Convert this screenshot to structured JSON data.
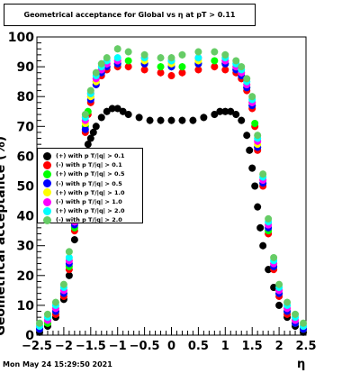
{
  "title": "Geometrical acceptance for Global vs  η at pT > 0.11",
  "footer": "Mon May 24 15:29:50 2021",
  "chart_data": {
    "type": "scatter",
    "xlabel": "η",
    "ylabel": "Geometrical acceptance (%)",
    "xlim": [
      -2.5,
      2.5
    ],
    "ylim": [
      0,
      100
    ],
    "x_ticks": [
      "−2.5",
      "−2",
      "−1.5",
      "−1",
      "−0.5",
      "0",
      "0.5",
      "1",
      "1.5",
      "2",
      "2.5"
    ],
    "y_ticks": [
      "0",
      "10",
      "20",
      "30",
      "40",
      "50",
      "60",
      "70",
      "80",
      "90",
      "100"
    ],
    "legend_position": "left-middle",
    "series": [
      {
        "name": "(+) with p T/|q| > 0.1",
        "color": "#000000",
        "x": [
          -2.45,
          -2.3,
          -2.15,
          -2.0,
          -1.9,
          -1.8,
          -1.7,
          -1.65,
          -1.6,
          -1.55,
          -1.5,
          -1.45,
          -1.4,
          -1.3,
          -1.2,
          -1.1,
          -1.0,
          -0.9,
          -0.8,
          -0.6,
          -0.4,
          -0.2,
          0.0,
          0.2,
          0.4,
          0.6,
          0.8,
          0.9,
          1.0,
          1.1,
          1.2,
          1.3,
          1.4,
          1.45,
          1.5,
          1.55,
          1.6,
          1.65,
          1.7,
          1.8,
          1.9,
          2.0,
          2.15,
          2.3,
          2.45
        ],
        "y": [
          1,
          3,
          6,
          12,
          20,
          32,
          45,
          55,
          60,
          64,
          66,
          68,
          70,
          73,
          75,
          76,
          76,
          75,
          74,
          73,
          72,
          72,
          72,
          72,
          72,
          73,
          74,
          75,
          75,
          75,
          74,
          72,
          67,
          62,
          56,
          50,
          43,
          36,
          30,
          22,
          16,
          10,
          6,
          3,
          1
        ]
      },
      {
        "name": "(-) with p T/|q| > 0.1",
        "color": "#ff0000",
        "x": [
          -2.45,
          -2.3,
          -2.15,
          -2.0,
          -1.9,
          -1.8,
          -1.7,
          -1.6,
          -1.55,
          -1.5,
          -1.4,
          -1.3,
          -1.2,
          -1.0,
          -0.8,
          -0.5,
          -0.2,
          0.0,
          0.2,
          0.5,
          0.8,
          1.0,
          1.2,
          1.3,
          1.4,
          1.5,
          1.55,
          1.6,
          1.7,
          1.8,
          1.9,
          2.0,
          2.15,
          2.3,
          2.45
        ],
        "y": [
          2,
          4,
          7,
          13,
          22,
          35,
          52,
          68,
          74,
          78,
          84,
          87,
          89,
          90,
          90,
          89,
          88,
          87,
          88,
          89,
          90,
          89,
          88,
          86,
          82,
          76,
          70,
          62,
          50,
          34,
          22,
          13,
          7,
          4,
          2
        ]
      },
      {
        "name": "(+) with p T/|q| > 0.5",
        "color": "#00ff00",
        "x": [
          -2.45,
          -2.3,
          -2.15,
          -2.0,
          -1.9,
          -1.8,
          -1.7,
          -1.6,
          -1.55,
          -1.5,
          -1.4,
          -1.3,
          -1.2,
          -1.0,
          -0.8,
          -0.5,
          -0.2,
          0.0,
          0.2,
          0.5,
          0.8,
          1.0,
          1.2,
          1.3,
          1.4,
          1.5,
          1.55,
          1.6,
          1.7,
          1.8,
          1.9,
          2.0,
          2.15,
          2.3,
          2.45
        ],
        "y": [
          2,
          4,
          8,
          14,
          23,
          36,
          54,
          70,
          75,
          80,
          85,
          88,
          90,
          91,
          92,
          91,
          90,
          90,
          90,
          91,
          92,
          91,
          89,
          87,
          83,
          77,
          71,
          63,
          51,
          35,
          23,
          14,
          8,
          4,
          2
        ]
      },
      {
        "name": "(-) with p T/|q| > 0.5",
        "color": "#0000ff",
        "x": [
          -2.45,
          -2.3,
          -2.15,
          -2.0,
          -1.9,
          -1.8,
          -1.7,
          -1.6,
          -1.5,
          -1.4,
          -1.3,
          -1.2,
          -1.0,
          -0.5,
          0.0,
          0.5,
          1.0,
          1.2,
          1.3,
          1.4,
          1.5,
          1.6,
          1.7,
          1.8,
          1.9,
          2.0,
          2.15,
          2.3,
          2.45
        ],
        "y": [
          2,
          5,
          8,
          14,
          24,
          37,
          55,
          69,
          79,
          84,
          88,
          90,
          91,
          91,
          90,
          91,
          91,
          89,
          87,
          83,
          77,
          63,
          51,
          36,
          23,
          14,
          8,
          4,
          2
        ]
      },
      {
        "name": "(+) with p T/|q| > 1.0",
        "color": "#ffff00",
        "x": [
          -2.45,
          -2.3,
          -2.15,
          -2.0,
          -1.9,
          -1.8,
          -1.7,
          -1.6,
          -1.5,
          -1.4,
          -1.3,
          -1.2,
          -1.0,
          -0.5,
          0.0,
          0.5,
          1.0,
          1.2,
          1.3,
          1.4,
          1.5,
          1.6,
          1.7,
          1.8,
          1.9,
          2.0,
          2.15,
          2.3,
          2.45
        ],
        "y": [
          3,
          5,
          9,
          15,
          25,
          38,
          56,
          71,
          80,
          85,
          89,
          91,
          92,
          92,
          91,
          92,
          92,
          90,
          88,
          84,
          78,
          64,
          52,
          37,
          24,
          15,
          9,
          5,
          3
        ]
      },
      {
        "name": "(-) with p T/|q| > 1.0",
        "color": "#ff00ff",
        "x": [
          -2.45,
          -2.3,
          -2.15,
          -2.0,
          -1.9,
          -1.8,
          -1.7,
          -1.6,
          -1.5,
          -1.4,
          -1.3,
          -1.2,
          -1.0,
          -0.5,
          0.0,
          0.5,
          1.0,
          1.2,
          1.3,
          1.4,
          1.5,
          1.6,
          1.7,
          1.8,
          1.9,
          2.0,
          2.15,
          2.3,
          2.45
        ],
        "y": [
          3,
          5,
          9,
          15,
          25,
          38,
          57,
          72,
          81,
          86,
          89,
          91,
          92,
          93,
          92,
          93,
          92,
          90,
          88,
          84,
          78,
          65,
          52,
          37,
          24,
          15,
          9,
          5,
          3
        ]
      },
      {
        "name": "(+) with p T/|q| > 2.0",
        "color": "#00ffff",
        "x": [
          -2.45,
          -2.3,
          -2.15,
          -2.0,
          -1.9,
          -1.8,
          -1.7,
          -1.6,
          -1.5,
          -1.4,
          -1.3,
          -1.2,
          -1.0,
          -0.5,
          0.0,
          0.5,
          1.0,
          1.2,
          1.3,
          1.4,
          1.5,
          1.6,
          1.7,
          1.8,
          1.9,
          2.0,
          2.15,
          2.3,
          2.45
        ],
        "y": [
          3,
          6,
          10,
          16,
          26,
          39,
          58,
          73,
          81,
          87,
          90,
          92,
          93,
          93,
          92,
          93,
          93,
          91,
          89,
          85,
          79,
          66,
          53,
          38,
          25,
          16,
          10,
          6,
          3
        ]
      },
      {
        "name": "(-) with p T/|q| > 2.0",
        "color": "#66cc66",
        "x": [
          -2.45,
          -2.3,
          -2.15,
          -2.0,
          -1.9,
          -1.8,
          -1.7,
          -1.6,
          -1.5,
          -1.4,
          -1.3,
          -1.2,
          -1.0,
          -0.8,
          -0.5,
          -0.2,
          0.0,
          0.2,
          0.5,
          0.8,
          1.0,
          1.2,
          1.3,
          1.4,
          1.5,
          1.6,
          1.7,
          1.8,
          1.9,
          2.0,
          2.15,
          2.3,
          2.45
        ],
        "y": [
          4,
          7,
          11,
          17,
          28,
          40,
          59,
          74,
          82,
          88,
          91,
          93,
          96,
          95,
          94,
          93,
          93,
          94,
          95,
          95,
          94,
          92,
          90,
          86,
          80,
          67,
          54,
          39,
          26,
          17,
          11,
          7,
          4
        ]
      }
    ]
  }
}
